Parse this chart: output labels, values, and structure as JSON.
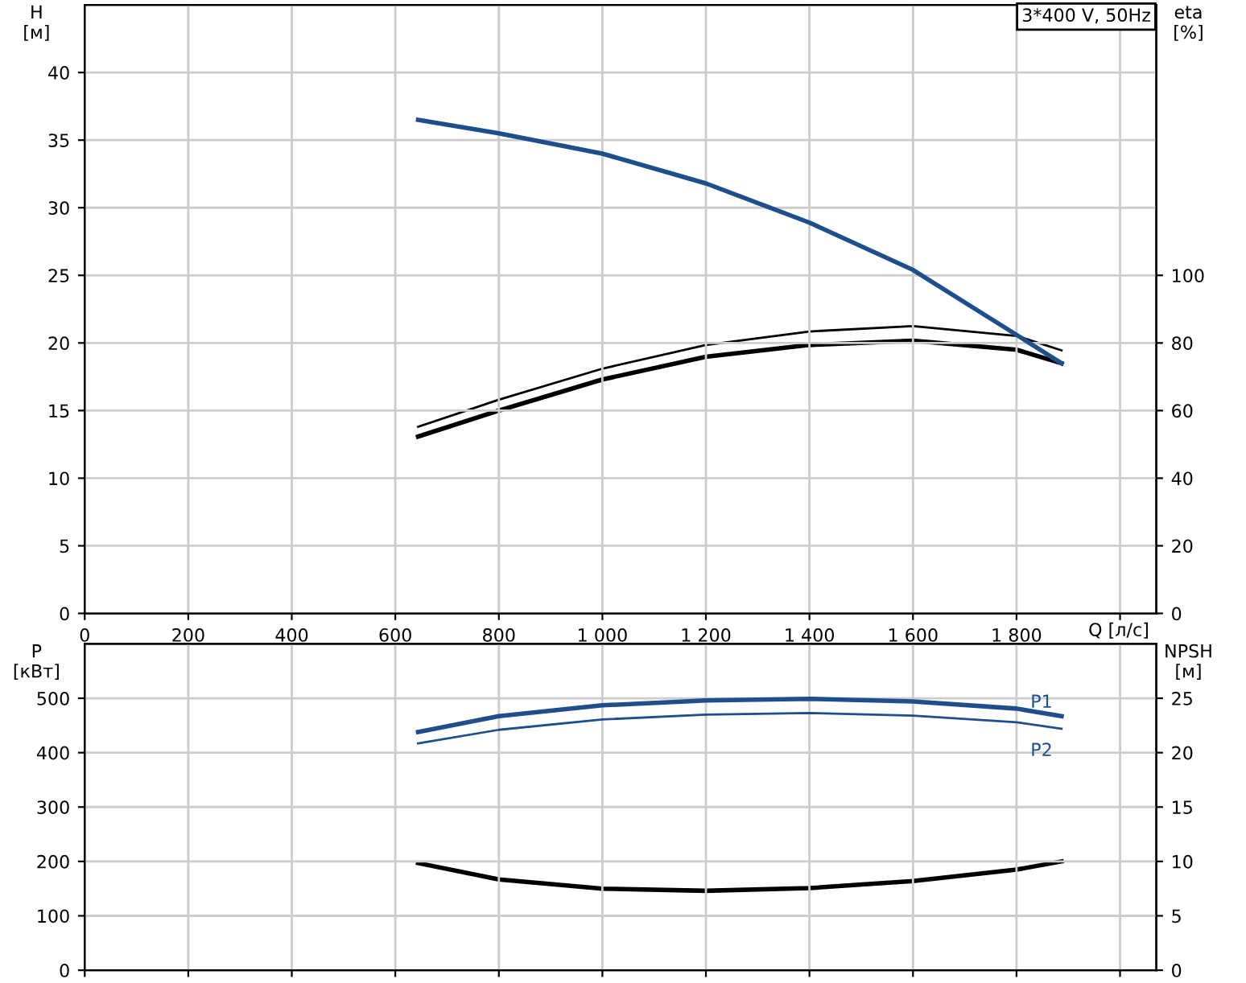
{
  "chart_data": [
    {
      "type": "line",
      "title": "3*400 V, 50Hz",
      "xlabel": "Q [л/с]",
      "ylabel": "H\n[м]",
      "y2label": "eta\n[%]",
      "xlim": [
        0,
        2070
      ],
      "xticks": [
        0,
        200,
        400,
        600,
        800,
        {
          "value": 1000,
          "label": "1 000"
        },
        {
          "value": 1200,
          "label": "1 200"
        },
        {
          "value": 1400,
          "label": "1 400"
        },
        {
          "value": 1600,
          "label": "1 600"
        },
        {
          "value": 1800,
          "label": "1 800"
        },
        {
          "value": 2000,
          "label": null
        }
      ],
      "ylim": [
        0,
        45
      ],
      "yticks": [
        0,
        5,
        10,
        15,
        20,
        25,
        30,
        35,
        40
      ],
      "y2lim": [
        0,
        180
      ],
      "y2ticks": [
        0,
        20,
        40,
        60,
        80,
        100
      ],
      "grid": true,
      "legend": false,
      "x": [
        644,
        800,
        1000,
        1200,
        1400,
        1600,
        1800,
        1887
      ],
      "series": [
        {
          "color": "#1f4e8c",
          "values": [
            36.5,
            35.5,
            34.0,
            31.8,
            28.9,
            25.4,
            20.6,
            18.5
          ]
        },
        {
          "color": "#000000",
          "axis": "y2",
          "values": [
            55.2,
            63.2,
            72.4,
            79.4,
            83.4,
            85.0,
            82.1,
            77.8
          ]
        },
        {
          "color": "#000000",
          "axis": "y2",
          "values": [
            52.3,
            60.0,
            69.2,
            75.9,
            79.4,
            80.7,
            78.0,
            74.0
          ]
        }
      ]
    },
    {
      "type": "line",
      "ylabel": "P\n[кВт]",
      "y2label": "NPSH\n[м]",
      "xlim": [
        0,
        2070
      ],
      "xticks": [
        0,
        200,
        400,
        600,
        800,
        1000,
        1200,
        1400,
        1600,
        1800,
        2000
      ],
      "tick_labels": "y",
      "ylim": [
        0,
        600
      ],
      "yticks": [
        0,
        100,
        200,
        300,
        400,
        500
      ],
      "y2lim": [
        0,
        30
      ],
      "y2ticks": [
        0,
        5,
        10,
        15,
        20,
        25
      ],
      "grid": true,
      "legend": false,
      "x": [
        644,
        800,
        1000,
        1200,
        1400,
        1600,
        1800,
        1887
      ],
      "series": [
        {
          "name": "P1",
          "color": "#1f4e8c",
          "values": [
            438,
            467,
            487,
            496,
            499,
            494,
            481,
            467
          ]
        },
        {
          "name": "P2",
          "color": "#1f4e8c",
          "values": [
            417,
            442,
            461,
            470,
            473,
            468,
            456,
            444
          ]
        },
        {
          "color": "#000000",
          "axis": "y2",
          "values": [
            9.85,
            8.35,
            7.5,
            7.3,
            7.55,
            8.2,
            9.25,
            10.0
          ]
        }
      ]
    }
  ]
}
